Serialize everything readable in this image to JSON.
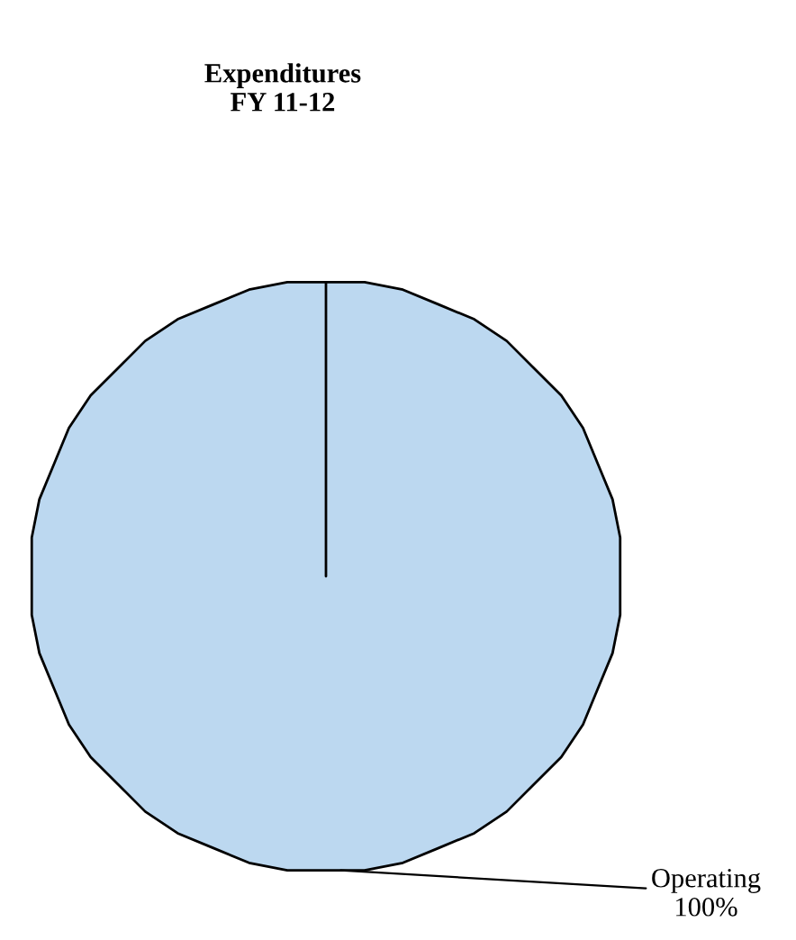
{
  "chart_data": {
    "type": "pie",
    "title": "Expenditures\nFY 11-12",
    "categories": [
      "Operating"
    ],
    "values": [
      100
    ],
    "value_labels": [
      "100%"
    ],
    "colors": [
      "#bcd8f0"
    ]
  }
}
